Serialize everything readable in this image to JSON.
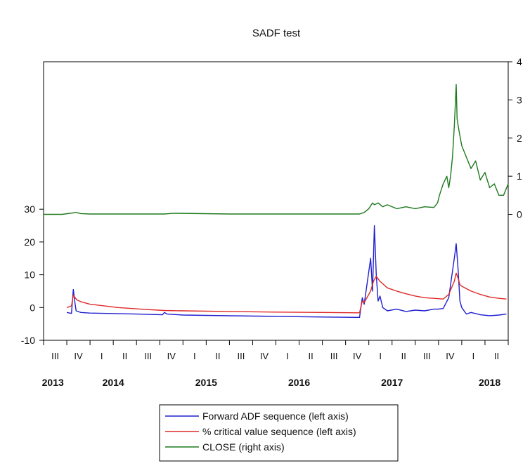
{
  "chart_data": {
    "type": "line",
    "title": "SADF test",
    "left_axis": {
      "ticks": [
        -10,
        0,
        10,
        20,
        30
      ],
      "range": [
        -10,
        75
      ]
    },
    "right_axis": {
      "ticks": [
        0,
        1,
        2,
        3,
        4
      ],
      "range": [
        -3.3,
        4
      ]
    },
    "x_quarter_labels": [
      "III",
      "IV",
      "I",
      "II",
      "III",
      "IV",
      "I",
      "II",
      "III",
      "IV",
      "I",
      "II",
      "III",
      "IV",
      "I",
      "II",
      "III",
      "IV",
      "I",
      "II"
    ],
    "x_year_labels": [
      "2013",
      "2014",
      "2015",
      "2016",
      "2017",
      "2018"
    ],
    "x_range": [
      2013.5,
      2018.5
    ],
    "series": [
      {
        "name": "Forward ADF sequence (left axis)",
        "axis": "left",
        "color": "#1f1fd0",
        "x": [
          2013.75,
          2013.8,
          2013.82,
          2013.84,
          2013.85,
          2013.87,
          2013.9,
          2014.0,
          2014.5,
          2014.78,
          2014.8,
          2014.83,
          2015.0,
          2015.5,
          2016.0,
          2016.5,
          2016.9,
          2016.93,
          2016.95,
          2017.02,
          2017.04,
          2017.06,
          2017.08,
          2017.1,
          2017.12,
          2017.15,
          2017.2,
          2017.3,
          2017.4,
          2017.5,
          2017.6,
          2017.7,
          2017.74,
          2017.8,
          2017.86,
          2017.92,
          2017.94,
          2017.96,
          2017.98,
          2018.0,
          2018.05,
          2018.1,
          2018.2,
          2018.3,
          2018.4,
          2018.48
        ],
        "y": [
          -1.5,
          -1.8,
          5.5,
          1.0,
          -1.0,
          -1.2,
          -1.5,
          -1.7,
          -2.0,
          -2.2,
          -1.5,
          -2.0,
          -2.3,
          -2.5,
          -2.7,
          -2.9,
          -3.0,
          3.0,
          1.0,
          15.0,
          5.0,
          25.0,
          10.0,
          2.0,
          3.5,
          0.0,
          -1.0,
          -0.5,
          -1.2,
          -0.8,
          -1.0,
          -0.5,
          -0.5,
          -0.3,
          3.0,
          15.0,
          19.5,
          12.0,
          2.0,
          0.0,
          -2.0,
          -1.5,
          -2.2,
          -2.5,
          -2.3,
          -2.0
        ]
      },
      {
        "name": "% critical value sequence (left axis)",
        "axis": "left",
        "color": "#e02828",
        "x": [
          2013.75,
          2013.8,
          2013.82,
          2013.84,
          2013.86,
          2013.9,
          2014.0,
          2014.3,
          2014.6,
          2014.8,
          2015.0,
          2015.5,
          2016.0,
          2016.5,
          2016.9,
          2016.93,
          2016.95,
          2017.02,
          2017.05,
          2017.08,
          2017.12,
          2017.2,
          2017.3,
          2017.4,
          2017.5,
          2017.6,
          2017.7,
          2017.8,
          2017.86,
          2017.92,
          2017.94,
          2017.96,
          2017.98,
          2018.0,
          2018.1,
          2018.2,
          2018.3,
          2018.4,
          2018.48
        ],
        "y": [
          0.0,
          0.5,
          3.8,
          3.0,
          2.3,
          1.8,
          1.0,
          0.0,
          -0.6,
          -0.9,
          -1.0,
          -1.2,
          -1.4,
          -1.5,
          -1.6,
          2.0,
          1.5,
          5.0,
          8.0,
          9.5,
          8.0,
          6.0,
          5.0,
          4.2,
          3.5,
          3.0,
          2.8,
          2.6,
          4.0,
          8.0,
          10.5,
          9.0,
          7.0,
          6.5,
          5.0,
          4.0,
          3.2,
          2.8,
          2.6
        ]
      },
      {
        "name": "CLOSE (right axis)",
        "axis": "right",
        "color": "#1e7a1e",
        "x": [
          2013.5,
          2013.7,
          2013.85,
          2013.9,
          2014.0,
          2014.5,
          2014.8,
          2014.9,
          2015.5,
          2016.5,
          2016.9,
          2016.95,
          2017.0,
          2017.04,
          2017.06,
          2017.1,
          2017.15,
          2017.2,
          2017.3,
          2017.4,
          2017.5,
          2017.6,
          2017.7,
          2017.74,
          2017.76,
          2017.8,
          2017.84,
          2017.86,
          2017.88,
          2017.9,
          2017.92,
          2017.94,
          2017.95,
          2017.97,
          2018.0,
          2018.05,
          2018.1,
          2018.15,
          2018.2,
          2018.25,
          2018.3,
          2018.35,
          2018.4,
          2018.45,
          2018.5
        ],
        "y": [
          0.0,
          0.0,
          0.05,
          0.02,
          0.01,
          0.01,
          0.01,
          0.03,
          0.01,
          0.01,
          0.01,
          0.05,
          0.15,
          0.3,
          0.25,
          0.3,
          0.2,
          0.25,
          0.15,
          0.2,
          0.15,
          0.2,
          0.18,
          0.3,
          0.5,
          0.8,
          1.0,
          0.7,
          1.0,
          1.5,
          2.3,
          3.4,
          2.5,
          2.2,
          1.8,
          1.5,
          1.2,
          1.4,
          0.9,
          1.1,
          0.7,
          0.8,
          0.5,
          0.5,
          0.8
        ]
      }
    ],
    "legend_position": "bottom-center"
  }
}
